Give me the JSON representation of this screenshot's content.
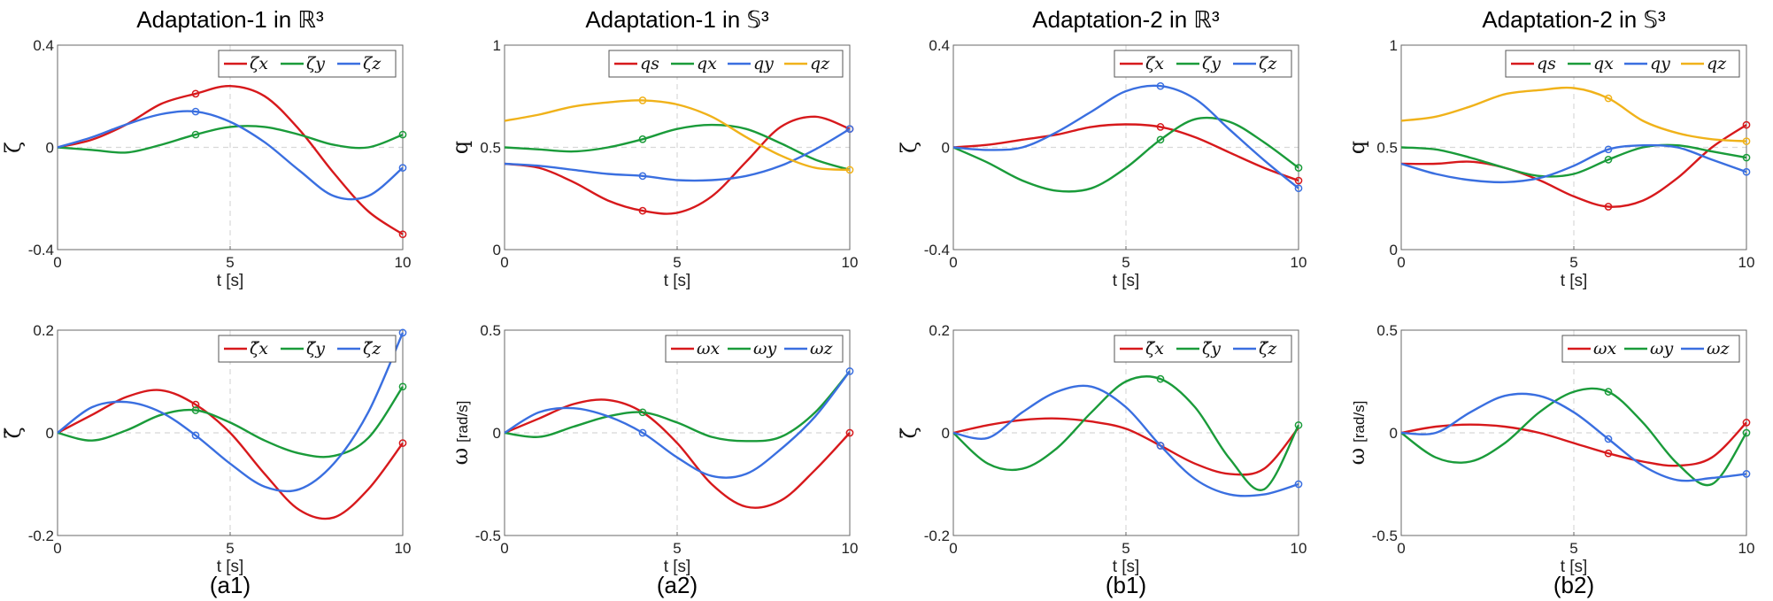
{
  "colors": {
    "red": "#d7191c",
    "green": "#1a9b3a",
    "blue": "#3a6fe0",
    "yellow": "#f0b21a"
  },
  "column_titles": [
    "Adaptation-1 in ℝ³",
    "Adaptation-1 in 𝕊³",
    "Adaptation-2 in ℝ³",
    "Adaptation-2 in 𝕊³"
  ],
  "subfigure_labels": [
    "(a1)",
    "(a2)",
    "(b1)",
    "(b2)"
  ],
  "chart_data": [
    {
      "id": "a1-top",
      "type": "line",
      "ylabel": "ζ",
      "xlabel": "t [s]",
      "xlim": [
        0,
        10
      ],
      "ylim": [
        -0.4,
        0.4
      ],
      "xticks": [
        "0",
        "5",
        "10"
      ],
      "yticks": [
        "-0.4",
        "0",
        "0.4"
      ],
      "legend": "top-right",
      "grid": true,
      "x": [
        0,
        1,
        2,
        3,
        4,
        5,
        6,
        7,
        8,
        9,
        10
      ],
      "series": [
        {
          "name": "ζx",
          "color": "red",
          "values": [
            0,
            0.03,
            0.09,
            0.17,
            0.21,
            0.24,
            0.2,
            0.07,
            -0.1,
            -0.25,
            -0.34
          ]
        },
        {
          "name": "ζy",
          "color": "green",
          "values": [
            0,
            -0.01,
            -0.02,
            0.01,
            0.05,
            0.08,
            0.08,
            0.05,
            0.01,
            0.0,
            0.05
          ]
        },
        {
          "name": "ζz",
          "color": "blue",
          "values": [
            0,
            0.04,
            0.09,
            0.13,
            0.14,
            0.1,
            0.02,
            -0.09,
            -0.19,
            -0.19,
            -0.08
          ]
        }
      ],
      "markers": [
        {
          "x": 4,
          "y": 0.21,
          "color": "red"
        },
        {
          "x": 4,
          "y": 0.05,
          "color": "green"
        },
        {
          "x": 4,
          "y": 0.14,
          "color": "blue"
        },
        {
          "x": 10,
          "y": -0.34,
          "color": "red"
        },
        {
          "x": 10,
          "y": 0.05,
          "color": "green"
        },
        {
          "x": 10,
          "y": -0.08,
          "color": "blue"
        }
      ]
    },
    {
      "id": "a2-top",
      "type": "line",
      "ylabel": "q",
      "xlabel": "t [s]",
      "xlim": [
        0,
        10
      ],
      "ylim": [
        0,
        1
      ],
      "xticks": [
        "0",
        "5",
        "10"
      ],
      "yticks": [
        "0",
        "0.5",
        "1"
      ],
      "legend": "top-right",
      "grid": true,
      "x": [
        0,
        1,
        2,
        3,
        4,
        5,
        6,
        7,
        8,
        9,
        10
      ],
      "series": [
        {
          "name": "qs",
          "color": "red",
          "values": [
            0.42,
            0.4,
            0.33,
            0.24,
            0.19,
            0.18,
            0.26,
            0.43,
            0.6,
            0.65,
            0.59
          ]
        },
        {
          "name": "qx",
          "color": "green",
          "values": [
            0.5,
            0.49,
            0.48,
            0.5,
            0.54,
            0.59,
            0.61,
            0.59,
            0.52,
            0.44,
            0.39
          ]
        },
        {
          "name": "qy",
          "color": "blue",
          "values": [
            0.42,
            0.41,
            0.39,
            0.37,
            0.36,
            0.34,
            0.34,
            0.36,
            0.41,
            0.49,
            0.59
          ]
        },
        {
          "name": "qz",
          "color": "yellow",
          "values": [
            0.63,
            0.66,
            0.7,
            0.72,
            0.73,
            0.71,
            0.65,
            0.55,
            0.46,
            0.4,
            0.39
          ]
        }
      ],
      "markers": [
        {
          "x": 4,
          "y": 0.19,
          "color": "red"
        },
        {
          "x": 4,
          "y": 0.54,
          "color": "green"
        },
        {
          "x": 4,
          "y": 0.36,
          "color": "blue"
        },
        {
          "x": 4,
          "y": 0.73,
          "color": "yellow"
        },
        {
          "x": 10,
          "y": 0.59,
          "color": "red"
        },
        {
          "x": 10,
          "y": 0.59,
          "color": "blue"
        },
        {
          "x": 10,
          "y": 0.39,
          "color": "yellow"
        }
      ]
    },
    {
      "id": "b1-top",
      "type": "line",
      "ylabel": "ζ",
      "xlabel": "t [s]",
      "xlim": [
        0,
        10
      ],
      "ylim": [
        -0.4,
        0.4
      ],
      "xticks": [
        "0",
        "5",
        "10"
      ],
      "yticks": [
        "-0.4",
        "0",
        "0.4"
      ],
      "legend": "top-right",
      "grid": true,
      "x": [
        0,
        1,
        2,
        3,
        4,
        5,
        6,
        7,
        8,
        9,
        10
      ],
      "series": [
        {
          "name": "ζx",
          "color": "red",
          "values": [
            0,
            0.01,
            0.03,
            0.05,
            0.08,
            0.09,
            0.08,
            0.04,
            -0.02,
            -0.08,
            -0.13
          ]
        },
        {
          "name": "ζy",
          "color": "green",
          "values": [
            0,
            -0.06,
            -0.13,
            -0.17,
            -0.16,
            -0.08,
            0.03,
            0.11,
            0.1,
            0.02,
            -0.08
          ]
        },
        {
          "name": "ζz",
          "color": "blue",
          "values": [
            0,
            -0.01,
            0.0,
            0.06,
            0.14,
            0.22,
            0.24,
            0.19,
            0.07,
            -0.05,
            -0.16
          ]
        }
      ],
      "markers": [
        {
          "x": 6,
          "y": 0.08,
          "color": "red"
        },
        {
          "x": 6,
          "y": 0.03,
          "color": "green"
        },
        {
          "x": 6,
          "y": 0.24,
          "color": "blue"
        },
        {
          "x": 10,
          "y": -0.13,
          "color": "red"
        },
        {
          "x": 10,
          "y": -0.08,
          "color": "green"
        },
        {
          "x": 10,
          "y": -0.16,
          "color": "blue"
        }
      ]
    },
    {
      "id": "b2-top",
      "type": "line",
      "ylabel": "q",
      "xlabel": "t [s]",
      "xlim": [
        0,
        10
      ],
      "ylim": [
        0,
        1
      ],
      "xticks": [
        "0",
        "5",
        "10"
      ],
      "yticks": [
        "0",
        "0.5",
        "1"
      ],
      "legend": "top-right",
      "grid": true,
      "x": [
        0,
        1,
        2,
        3,
        4,
        5,
        6,
        7,
        8,
        9,
        10
      ],
      "series": [
        {
          "name": "qs",
          "color": "red",
          "values": [
            0.42,
            0.42,
            0.43,
            0.4,
            0.34,
            0.26,
            0.21,
            0.24,
            0.35,
            0.5,
            0.61
          ]
        },
        {
          "name": "qx",
          "color": "green",
          "values": [
            0.5,
            0.49,
            0.45,
            0.4,
            0.36,
            0.37,
            0.44,
            0.5,
            0.51,
            0.48,
            0.45
          ]
        },
        {
          "name": "qy",
          "color": "blue",
          "values": [
            0.42,
            0.37,
            0.34,
            0.33,
            0.35,
            0.41,
            0.49,
            0.51,
            0.5,
            0.44,
            0.38
          ]
        },
        {
          "name": "qz",
          "color": "yellow",
          "values": [
            0.63,
            0.65,
            0.7,
            0.76,
            0.78,
            0.79,
            0.74,
            0.63,
            0.57,
            0.54,
            0.53
          ]
        }
      ],
      "markers": [
        {
          "x": 6,
          "y": 0.21,
          "color": "red"
        },
        {
          "x": 6,
          "y": 0.44,
          "color": "green"
        },
        {
          "x": 6,
          "y": 0.49,
          "color": "blue"
        },
        {
          "x": 6,
          "y": 0.74,
          "color": "yellow"
        },
        {
          "x": 10,
          "y": 0.61,
          "color": "red"
        },
        {
          "x": 10,
          "y": 0.45,
          "color": "green"
        },
        {
          "x": 10,
          "y": 0.38,
          "color": "blue"
        },
        {
          "x": 10,
          "y": 0.53,
          "color": "yellow"
        }
      ]
    },
    {
      "id": "a1-bottom",
      "type": "line",
      "ylabel": "ζ̇",
      "xlabel": "t [s]",
      "xlim": [
        0,
        10
      ],
      "ylim": [
        -0.2,
        0.2
      ],
      "xticks": [
        "0",
        "5",
        "10"
      ],
      "yticks": [
        "-0.2",
        "0",
        "0.2"
      ],
      "legend": "top-right",
      "grid": true,
      "x": [
        0,
        1,
        2,
        3,
        4,
        5,
        6,
        7,
        8,
        9,
        10
      ],
      "series": [
        {
          "name": "ζ̇x",
          "color": "red",
          "values": [
            0,
            0.035,
            0.07,
            0.083,
            0.055,
            0.0,
            -0.08,
            -0.15,
            -0.165,
            -0.11,
            -0.02
          ]
        },
        {
          "name": "ζ̇y",
          "color": "green",
          "values": [
            0,
            -0.015,
            0.005,
            0.035,
            0.044,
            0.02,
            -0.015,
            -0.04,
            -0.045,
            -0.01,
            0.09
          ]
        },
        {
          "name": "ζ̇z",
          "color": "blue",
          "values": [
            0,
            0.05,
            0.06,
            0.04,
            -0.005,
            -0.06,
            -0.105,
            -0.11,
            -0.06,
            0.04,
            0.195
          ]
        }
      ],
      "markers": [
        {
          "x": 4,
          "y": 0.055,
          "color": "red"
        },
        {
          "x": 4,
          "y": 0.044,
          "color": "green"
        },
        {
          "x": 4,
          "y": -0.005,
          "color": "blue"
        },
        {
          "x": 10,
          "y": -0.02,
          "color": "red"
        },
        {
          "x": 10,
          "y": 0.09,
          "color": "green"
        },
        {
          "x": 10,
          "y": 0.195,
          "color": "blue"
        }
      ]
    },
    {
      "id": "a2-bottom",
      "type": "line",
      "ylabel": "ω",
      "yunit": "[rad/s]",
      "xlabel": "t [s]",
      "xlim": [
        0,
        10
      ],
      "ylim": [
        -0.5,
        0.5
      ],
      "xticks": [
        "0",
        "5",
        "10"
      ],
      "yticks": [
        "-0.5",
        "0",
        "0.5"
      ],
      "legend": "top-right",
      "grid": true,
      "x": [
        0,
        1,
        2,
        3,
        4,
        5,
        6,
        7,
        8,
        9,
        10
      ],
      "series": [
        {
          "name": "ωx",
          "color": "red",
          "values": [
            0,
            0.07,
            0.14,
            0.16,
            0.1,
            -0.05,
            -0.25,
            -0.36,
            -0.33,
            -0.18,
            0.0
          ]
        },
        {
          "name": "ωy",
          "color": "green",
          "values": [
            0,
            -0.02,
            0.03,
            0.08,
            0.1,
            0.05,
            -0.02,
            -0.04,
            -0.02,
            0.1,
            0.3
          ]
        },
        {
          "name": "ωz",
          "color": "blue",
          "values": [
            0,
            0.1,
            0.12,
            0.08,
            0.0,
            -0.12,
            -0.21,
            -0.2,
            -0.08,
            0.08,
            0.3
          ]
        }
      ],
      "markers": [
        {
          "x": 4,
          "y": 0.1,
          "color": "green"
        },
        {
          "x": 4,
          "y": 0.0,
          "color": "blue"
        },
        {
          "x": 10,
          "y": 0.0,
          "color": "red"
        },
        {
          "x": 10,
          "y": 0.3,
          "color": "blue"
        }
      ]
    },
    {
      "id": "b1-bottom",
      "type": "line",
      "ylabel": "ζ̇",
      "xlabel": "t [s]",
      "xlim": [
        0,
        10
      ],
      "ylim": [
        -0.2,
        0.2
      ],
      "xticks": [
        "0",
        "5",
        "10"
      ],
      "yticks": [
        "-0.2",
        "0",
        "0.2"
      ],
      "legend": "top-right",
      "grid": true,
      "x": [
        0,
        1,
        2,
        3,
        4,
        5,
        6,
        7,
        8,
        9,
        10
      ],
      "series": [
        {
          "name": "ζ̇x",
          "color": "red",
          "values": [
            0,
            0.015,
            0.025,
            0.028,
            0.022,
            0.008,
            -0.025,
            -0.06,
            -0.08,
            -0.07,
            0.01
          ]
        },
        {
          "name": "ζ̇y",
          "color": "green",
          "values": [
            0,
            -0.06,
            -0.07,
            -0.03,
            0.04,
            0.1,
            0.105,
            0.05,
            -0.05,
            -0.11,
            0.015
          ]
        },
        {
          "name": "ζ̇z",
          "color": "blue",
          "values": [
            0,
            -0.01,
            0.04,
            0.08,
            0.09,
            0.05,
            -0.025,
            -0.09,
            -0.12,
            -0.12,
            -0.1
          ]
        }
      ],
      "markers": [
        {
          "x": 6,
          "y": -0.025,
          "color": "red"
        },
        {
          "x": 6,
          "y": 0.105,
          "color": "green"
        },
        {
          "x": 6,
          "y": -0.025,
          "color": "blue"
        },
        {
          "x": 10,
          "y": 0.015,
          "color": "green"
        },
        {
          "x": 10,
          "y": -0.1,
          "color": "blue"
        }
      ]
    },
    {
      "id": "b2-bottom",
      "type": "line",
      "ylabel": "ω",
      "yunit": "[rad/s]",
      "xlabel": "t [s]",
      "xlim": [
        0,
        10
      ],
      "ylim": [
        -0.5,
        0.5
      ],
      "xticks": [
        "0",
        "5",
        "10"
      ],
      "yticks": [
        "-0.5",
        "0",
        "0.5"
      ],
      "legend": "top-right",
      "grid": true,
      "x": [
        0,
        1,
        2,
        3,
        4,
        5,
        6,
        7,
        8,
        9,
        10
      ],
      "series": [
        {
          "name": "ωx",
          "color": "red",
          "values": [
            0,
            0.03,
            0.04,
            0.03,
            0.0,
            -0.05,
            -0.1,
            -0.14,
            -0.16,
            -0.12,
            0.05
          ]
        },
        {
          "name": "ωy",
          "color": "green",
          "values": [
            0,
            -0.12,
            -0.14,
            -0.05,
            0.1,
            0.2,
            0.2,
            0.05,
            -0.15,
            -0.25,
            0.0
          ]
        },
        {
          "name": "ωz",
          "color": "blue",
          "values": [
            0,
            0.0,
            0.1,
            0.18,
            0.18,
            0.1,
            -0.03,
            -0.16,
            -0.23,
            -0.22,
            -0.2
          ]
        }
      ],
      "markers": [
        {
          "x": 6,
          "y": -0.1,
          "color": "red"
        },
        {
          "x": 6,
          "y": 0.2,
          "color": "green"
        },
        {
          "x": 6,
          "y": -0.03,
          "color": "blue"
        },
        {
          "x": 10,
          "y": 0.05,
          "color": "red"
        },
        {
          "x": 10,
          "y": 0.0,
          "color": "green"
        },
        {
          "x": 10,
          "y": -0.2,
          "color": "blue"
        }
      ]
    }
  ]
}
